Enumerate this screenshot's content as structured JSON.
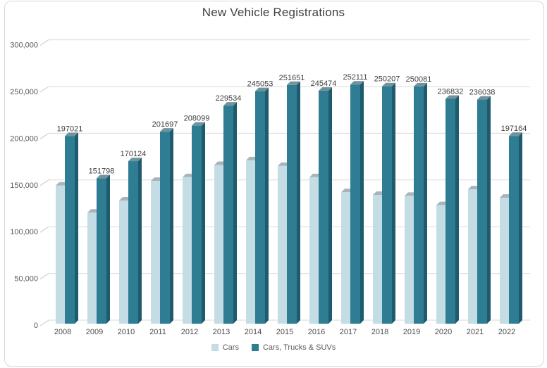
{
  "chart_data": {
    "type": "bar",
    "style_3d": true,
    "title": "New Vehicle Registrations",
    "categories": [
      "2008",
      "2009",
      "2010",
      "2011",
      "2012",
      "2013",
      "2014",
      "2015",
      "2016",
      "2017",
      "2018",
      "2019",
      "2020",
      "2021",
      "2022"
    ],
    "series": [
      {
        "name": "Cars",
        "color": "#c4dde5",
        "side_color": "#9fc2ce",
        "top_color": "#a7b5ba",
        "labels_shown": false,
        "values": [
          144000,
          115000,
          128000,
          149000,
          153000,
          166000,
          171000,
          165000,
          153000,
          137000,
          134000,
          133000,
          123000,
          140000,
          131000
        ]
      },
      {
        "name": "Cars, Trucks & SUVs",
        "color": "#2e7d93",
        "side_color": "#1e5b6d",
        "top_color": "#72939e",
        "labels_shown": true,
        "values": [
          197021,
          151798,
          170124,
          201697,
          208099,
          229534,
          245053,
          251651,
          245474,
          252111,
          250207,
          250081,
          236832,
          236038,
          197164
        ]
      }
    ],
    "xlabel": "",
    "ylabel": "",
    "ylim": [
      0,
      300000
    ],
    "ytick_step": 50000,
    "y_ticks": [
      "0",
      "50,000",
      "100,000",
      "150,000",
      "200,000",
      "250,000",
      "300,000"
    ],
    "grid": true,
    "gridline_color": "#d9d9d9",
    "axis_tick_color": "#c9c9c9",
    "legend_position": "bottom"
  }
}
